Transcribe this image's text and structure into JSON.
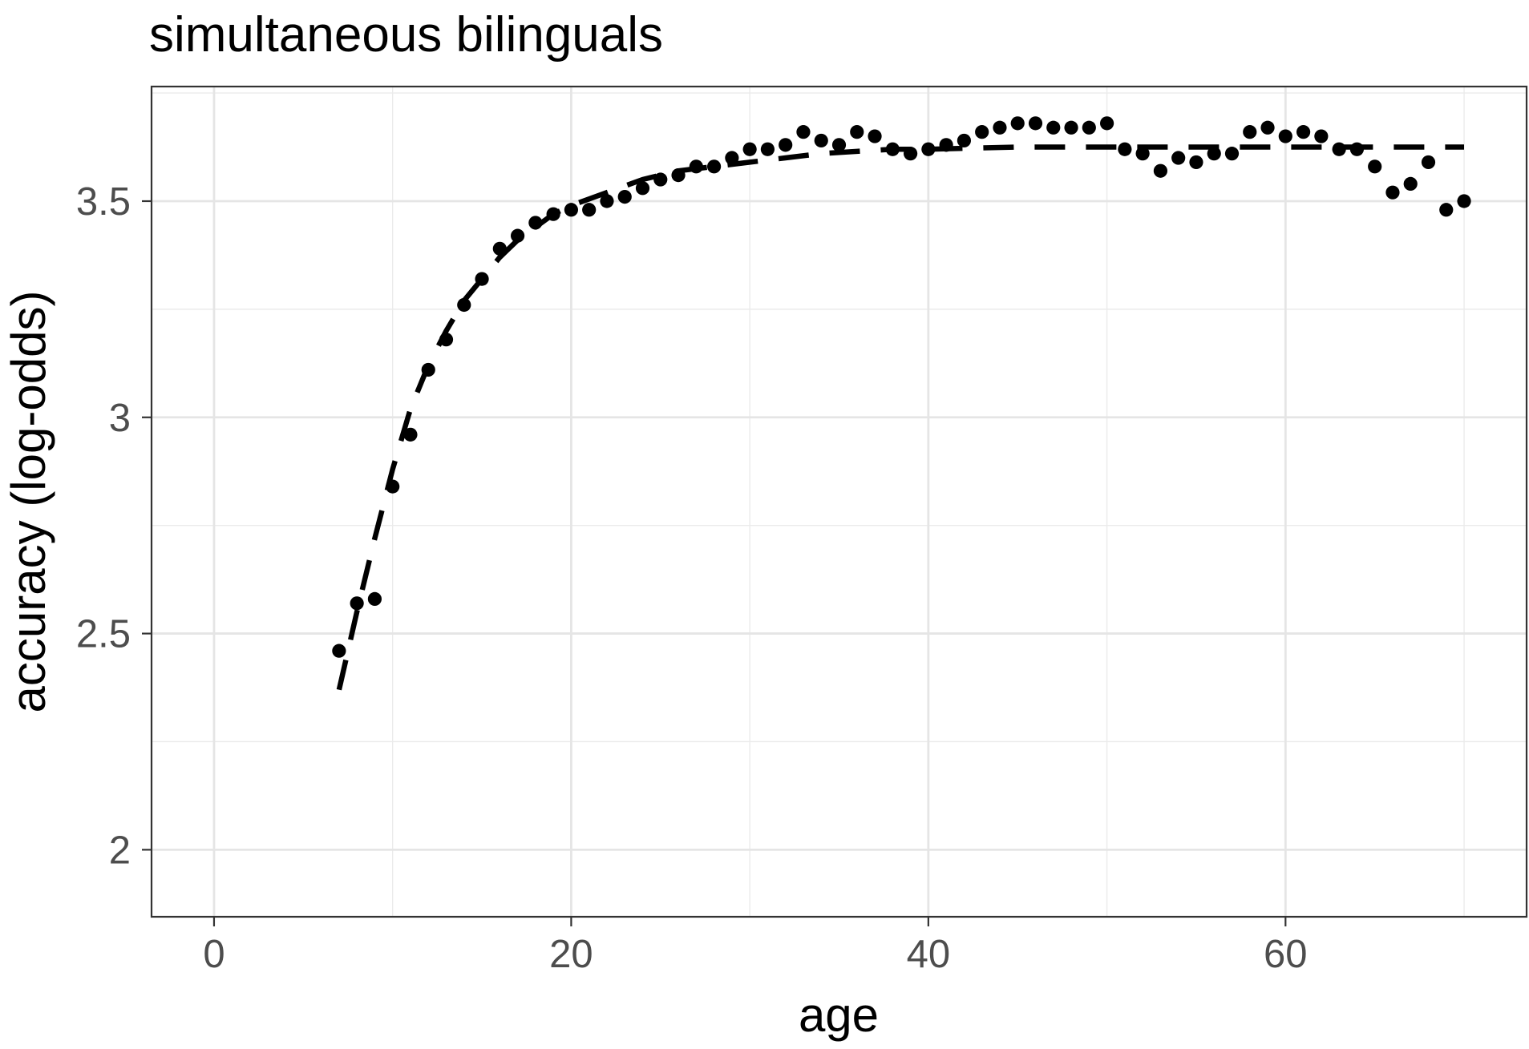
{
  "chart_data": {
    "type": "scatter",
    "title": "simultaneous bilinguals",
    "xlabel": "age",
    "ylabel": "accuracy (log-odds)",
    "xlim": [
      -3.5,
      73.5
    ],
    "ylim": [
      1.845,
      3.765
    ],
    "x_ticks": [
      0,
      20,
      40,
      60
    ],
    "x_tick_labels": [
      "0",
      "20",
      "40",
      "60"
    ],
    "y_ticks": [
      2,
      2.5,
      3,
      3.5
    ],
    "y_tick_labels": [
      "2",
      "2.5",
      "3",
      "3.5"
    ],
    "grid": true,
    "legend": "none",
    "series": [
      {
        "kind": "points",
        "x": [
          7,
          8,
          9,
          10,
          11,
          12,
          13,
          14,
          15,
          16,
          17,
          18,
          19,
          20,
          21,
          22,
          23,
          24,
          25,
          26,
          27,
          28,
          29,
          30,
          31,
          32,
          33,
          34,
          35,
          36,
          37,
          38,
          39,
          40,
          41,
          42,
          43,
          44,
          45,
          46,
          47,
          48,
          49,
          50,
          51,
          52,
          53,
          54,
          55,
          56,
          57,
          58,
          59,
          60,
          61,
          62,
          63,
          64,
          65,
          66,
          67,
          68,
          69,
          70
        ],
        "y": [
          2.46,
          2.57,
          2.58,
          2.84,
          2.96,
          3.11,
          3.18,
          3.26,
          3.32,
          3.39,
          3.42,
          3.45,
          3.47,
          3.48,
          3.48,
          3.5,
          3.51,
          3.53,
          3.55,
          3.56,
          3.58,
          3.58,
          3.6,
          3.62,
          3.62,
          3.63,
          3.66,
          3.64,
          3.63,
          3.66,
          3.65,
          3.62,
          3.61,
          3.62,
          3.63,
          3.64,
          3.66,
          3.67,
          3.68,
          3.68,
          3.67,
          3.67,
          3.67,
          3.68,
          3.62,
          3.61,
          3.57,
          3.6,
          3.59,
          3.61,
          3.61,
          3.66,
          3.67,
          3.65,
          3.66,
          3.65,
          3.62,
          3.62,
          3.58,
          3.52,
          3.54,
          3.59,
          3.48,
          3.5
        ]
      },
      {
        "kind": "dashed-line",
        "x": [
          7,
          8,
          9,
          10,
          11,
          12,
          13,
          14,
          15,
          16,
          17,
          18,
          19,
          20,
          22,
          24,
          26,
          28,
          30,
          32,
          34,
          36,
          38,
          40,
          45,
          50,
          55,
          60,
          65,
          70
        ],
        "y": [
          2.37,
          2.55,
          2.72,
          2.88,
          3.02,
          3.12,
          3.2,
          3.27,
          3.32,
          3.37,
          3.41,
          3.44,
          3.47,
          3.49,
          3.52,
          3.55,
          3.57,
          3.58,
          3.59,
          3.6,
          3.61,
          3.615,
          3.62,
          3.62,
          3.625,
          3.625,
          3.625,
          3.625,
          3.625,
          3.625
        ]
      }
    ]
  }
}
